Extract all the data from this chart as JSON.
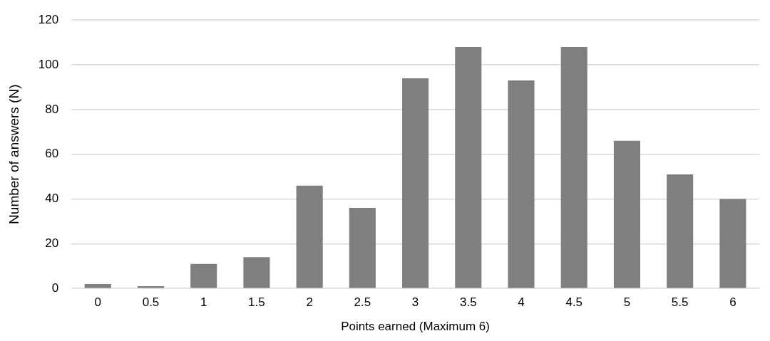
{
  "chart_data": {
    "type": "bar",
    "xlabel": "Points earned (Maximum 6)",
    "ylabel": "Number of answers (N)",
    "categories": [
      "0",
      "0.5",
      "1",
      "1.5",
      "2",
      "2.5",
      "3",
      "3.5",
      "4",
      "4.5",
      "5",
      "5.5",
      "6"
    ],
    "values": [
      2,
      1,
      11,
      14,
      46,
      36,
      94,
      108,
      93,
      108,
      66,
      51,
      40
    ],
    "color": "#7f7f7f",
    "ylim": [
      0,
      120
    ],
    "yticks": [
      0,
      20,
      40,
      60,
      80,
      100,
      120
    ],
    "grid": "y",
    "legend": false
  }
}
